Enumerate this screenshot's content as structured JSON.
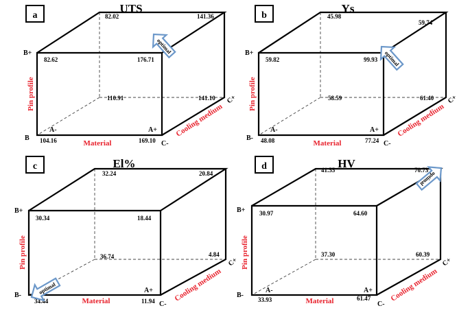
{
  "panels": [
    {
      "letter": "a",
      "title": "UTS",
      "optimal": "optimal",
      "back": [
        "82.02",
        "141.36",
        "110.91",
        "141.10"
      ],
      "front": [
        "82.62",
        "176.71",
        "104.16",
        "169.10"
      ],
      "levels": {
        "b_plus": "B+",
        "b_minus": "B",
        "a_minus": "A-",
        "a_plus": "A+",
        "c_minus": "C-",
        "c_plus": "C+"
      },
      "axes": {
        "pin": "Pin profile",
        "material": "Material",
        "cooling": "Cooling medium"
      }
    },
    {
      "letter": "b",
      "title": "Ys",
      "optimal": "optimal",
      "back": [
        "45.98",
        "59.74",
        "58.59",
        "61.40"
      ],
      "front": [
        "59.82",
        "99.93",
        "48.08",
        "77.24"
      ],
      "levels": {
        "b_plus": "B+",
        "b_minus": "B-",
        "a_minus": "A-",
        "a_plus": "A+",
        "c_minus": "C-",
        "c_plus": "C+"
      },
      "axes": {
        "pin": "Pin profile",
        "material": "Material",
        "cooling": "Cooling medium"
      }
    },
    {
      "letter": "c",
      "title": "El%",
      "optimal": "optimal",
      "back": [
        "32.24",
        "20.84",
        "36.74",
        "4.84"
      ],
      "front": [
        "30.34",
        "18.44",
        "34.44",
        "11.94"
      ],
      "levels": {
        "b_plus": "B+",
        "b_minus": "B-",
        "a_minus": "A-",
        "a_plus": "A+",
        "c_minus": "C-",
        "c_plus": "C+"
      },
      "axes": {
        "pin": "Pin profile",
        "material": "Material",
        "cooling": "Cooling medium"
      }
    },
    {
      "letter": "d",
      "title": "HV",
      "optimal": "optimal",
      "back": [
        "41.55",
        "70.73",
        "37.30",
        "60.39"
      ],
      "front": [
        "30.97",
        "64.60",
        "33.93",
        "61.47"
      ],
      "levels": {
        "b_plus": "B+",
        "b_minus": "B-",
        "a_minus": "A-",
        "a_plus": "A+",
        "c_minus": "C-",
        "c_plus": "C+"
      },
      "axes": {
        "pin": "Pin profile",
        "material": "Material",
        "cooling": "Cooling medium"
      }
    }
  ],
  "colors": {
    "axis_label": "#e8222d",
    "arrow": "#6b97c9"
  }
}
